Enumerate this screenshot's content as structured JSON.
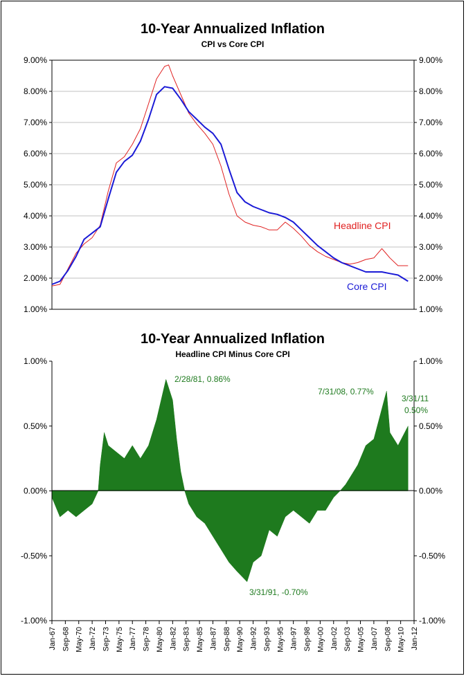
{
  "chart_data": [
    {
      "type": "line",
      "title": "10-Year Annualized Inflation",
      "subtitle": "CPI vs Core CPI",
      "ylim": [
        0.01,
        0.09
      ],
      "yticks": [
        "1.00%",
        "2.00%",
        "3.00%",
        "4.00%",
        "5.00%",
        "6.00%",
        "7.00%",
        "8.00%",
        "9.00%"
      ],
      "grid": true,
      "series": [
        {
          "name": "Headline CPI",
          "color": "#e02020",
          "x": [
            1967.0,
            1968.0,
            1969.0,
            1970.0,
            1971.0,
            1972.0,
            1973.0,
            1974.0,
            1975.0,
            1976.0,
            1977.0,
            1978.0,
            1979.0,
            1980.0,
            1981.0,
            1981.5,
            1982.0,
            1983.0,
            1984.0,
            1985.0,
            1986.0,
            1987.0,
            1988.0,
            1989.0,
            1990.0,
            1991.0,
            1992.0,
            1993.0,
            1994.0,
            1995.0,
            1996.0,
            1997.0,
            1998.0,
            1999.0,
            2000.0,
            2001.0,
            2002.0,
            2003.0,
            2004.0,
            2005.0,
            2006.0,
            2007.0,
            2008.0,
            2008.5,
            2009.0,
            2010.0,
            2011.25
          ],
          "values": [
            0.0175,
            0.018,
            0.023,
            0.028,
            0.031,
            0.033,
            0.037,
            0.048,
            0.057,
            0.059,
            0.063,
            0.068,
            0.076,
            0.084,
            0.088,
            0.0885,
            0.085,
            0.079,
            0.073,
            0.0695,
            0.0665,
            0.063,
            0.056,
            0.047,
            0.04,
            0.038,
            0.037,
            0.0365,
            0.0355,
            0.0355,
            0.038,
            0.036,
            0.0335,
            0.0305,
            0.0285,
            0.027,
            0.026,
            0.025,
            0.0245,
            0.025,
            0.026,
            0.0265,
            0.0295,
            0.028,
            0.0265,
            0.024,
            0.024
          ]
        },
        {
          "name": "Core CPI",
          "color": "#1a1ad6",
          "x": [
            1967.0,
            1968.0,
            1969.0,
            1970.0,
            1971.0,
            1972.0,
            1973.0,
            1974.0,
            1975.0,
            1976.0,
            1977.0,
            1978.0,
            1979.0,
            1980.0,
            1981.0,
            1982.0,
            1983.0,
            1984.0,
            1985.0,
            1986.0,
            1987.0,
            1988.0,
            1989.0,
            1990.0,
            1991.0,
            1992.0,
            1993.0,
            1994.0,
            1995.0,
            1996.0,
            1997.0,
            1998.0,
            1999.0,
            2000.0,
            2001.0,
            2002.0,
            2003.0,
            2004.0,
            2005.0,
            2006.0,
            2007.0,
            2008.0,
            2009.0,
            2010.0,
            2011.25
          ],
          "values": [
            0.018,
            0.019,
            0.0225,
            0.027,
            0.0325,
            0.0345,
            0.0365,
            0.0455,
            0.054,
            0.0575,
            0.0595,
            0.064,
            0.071,
            0.079,
            0.0815,
            0.081,
            0.0775,
            0.0735,
            0.071,
            0.0685,
            0.0665,
            0.063,
            0.055,
            0.0475,
            0.0445,
            0.043,
            0.042,
            0.041,
            0.0405,
            0.0395,
            0.038,
            0.0355,
            0.033,
            0.0305,
            0.0285,
            0.0265,
            0.025,
            0.024,
            0.023,
            0.022,
            0.022,
            0.022,
            0.0215,
            0.021,
            0.019
          ]
        }
      ]
    },
    {
      "type": "area",
      "title": "10-Year Annualized Inflation",
      "subtitle": "Headline CPI Minus Core CPI",
      "ylim": [
        -0.01,
        0.01
      ],
      "yticks": [
        "-1.00%",
        "-0.50%",
        "0.00%",
        "0.50%",
        "1.00%"
      ],
      "grid": false,
      "series": [
        {
          "name": "Headline CPI Minus Core CPI",
          "color": "#1e7a1e",
          "x": [
            1967.0,
            1968.0,
            1969.0,
            1970.0,
            1971.0,
            1972.0,
            1972.75,
            1973.0,
            1973.5,
            1974.0,
            1975.0,
            1976.0,
            1977.0,
            1978.0,
            1979.0,
            1980.0,
            1981.17,
            1982.0,
            1982.5,
            1983.0,
            1983.5,
            1984.0,
            1985.0,
            1986.0,
            1987.0,
            1988.0,
            1989.0,
            1990.0,
            1991.25,
            1992.0,
            1993.0,
            1994.0,
            1995.0,
            1996.0,
            1997.0,
            1998.0,
            1999.0,
            2000.0,
            2001.0,
            2002.0,
            2002.8,
            2003.5,
            2004.0,
            2005.0,
            2006.0,
            2007.0,
            2008.58,
            2009.0,
            2010.0,
            2011.25
          ],
          "values": [
            -0.0005,
            -0.002,
            -0.0015,
            -0.002,
            -0.0015,
            -0.001,
            0.0,
            0.002,
            0.0045,
            0.0035,
            0.003,
            0.0025,
            0.0035,
            0.0025,
            0.0035,
            0.0055,
            0.0086,
            0.007,
            0.004,
            0.0015,
            0.0,
            -0.001,
            -0.002,
            -0.0025,
            -0.0035,
            -0.0045,
            -0.0055,
            -0.0062,
            -0.007,
            -0.0055,
            -0.005,
            -0.003,
            -0.0035,
            -0.002,
            -0.0015,
            -0.002,
            -0.0025,
            -0.0015,
            -0.0015,
            -0.0005,
            0.0,
            0.0005,
            0.001,
            0.002,
            0.0035,
            0.004,
            0.0077,
            0.0045,
            0.0035,
            0.005
          ]
        }
      ],
      "annotations": [
        {
          "text": "2/28/81, 0.86%",
          "x": 1981.17,
          "y": 0.0086
        },
        {
          "text": "3/31/91, -0.70%",
          "x": 1991.25,
          "y": -0.007
        },
        {
          "text": "7/31/08, 0.77%",
          "x": 2008.58,
          "y": 0.0077
        },
        {
          "text": "3/31/11",
          "x": 2011.25,
          "y": 0.005
        },
        {
          "text": "0.50%",
          "x": 2011.25,
          "y": 0.005
        }
      ]
    }
  ],
  "x_axis": {
    "xlim": [
      1967.0,
      2012.0
    ],
    "tick_labels": [
      "Jan-67",
      "Sep-68",
      "May-70",
      "Jan-72",
      "Sep-73",
      "May-75",
      "Jan-77",
      "Sep-78",
      "May-80",
      "Jan-82",
      "Sep-83",
      "May-85",
      "Jan-87",
      "Sep-88",
      "May-90",
      "Jan-92",
      "Sep-93",
      "May-95",
      "Jan-97",
      "Sep-98",
      "May-00",
      "Jan-02",
      "Sep-03",
      "May-05",
      "Jan-07",
      "Sep-08",
      "May-10",
      "Jan-12"
    ]
  }
}
